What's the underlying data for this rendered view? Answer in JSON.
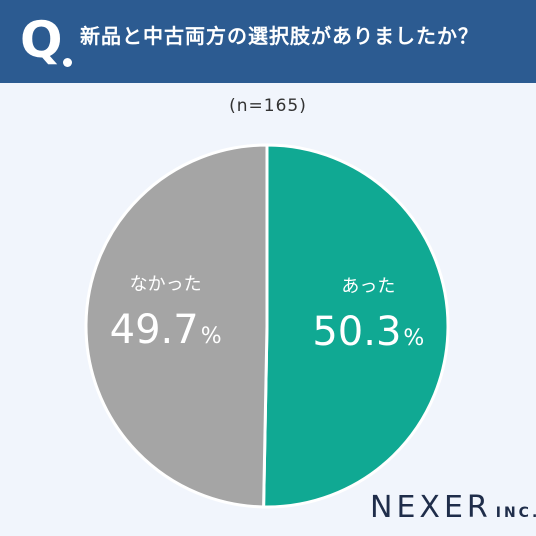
{
  "header": {
    "q_mark": "Q",
    "title": "新品と中古両方の選択肢がありましたか？"
  },
  "sample_label": "(n=165)",
  "brand": {
    "name": "NEXER",
    "suffix": "INC."
  },
  "colors": {
    "header_bg": "#2c5b91",
    "background": "#f1f5fc",
    "yes": "#10a993",
    "no": "#a5a5a5"
  },
  "chart_data": {
    "type": "pie",
    "start": "12 o'clock",
    "direction": "clockwise",
    "slices": [
      {
        "label": "あった",
        "value": 50.3,
        "value_label": "50.3",
        "unit": "%",
        "color": "#10a993"
      },
      {
        "label": "なかった",
        "value": 49.7,
        "value_label": "49.7",
        "unit": "%",
        "color": "#a5a5a5"
      }
    ]
  }
}
